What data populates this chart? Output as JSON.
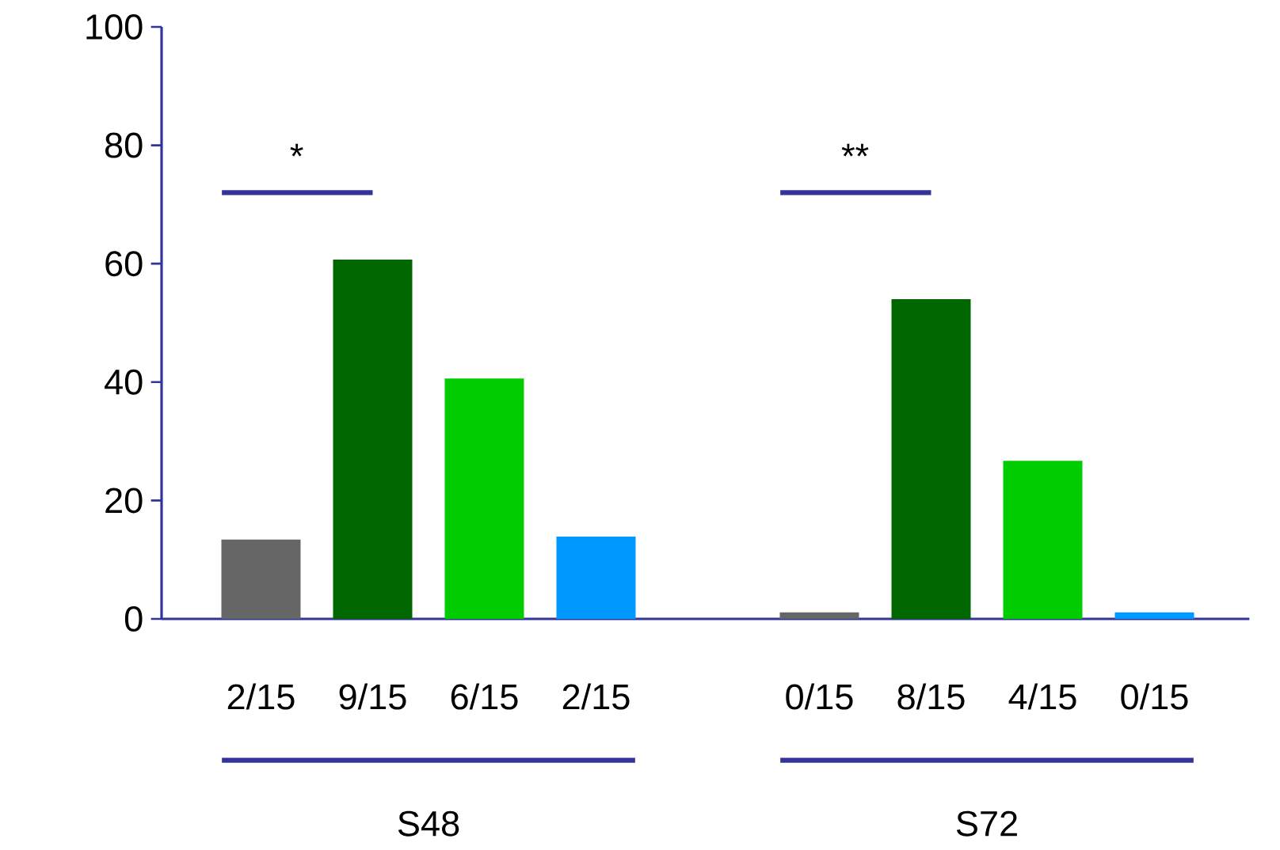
{
  "chart_data": {
    "type": "bar",
    "categories": [
      "2/15",
      "9/15",
      "6/15",
      "2/15",
      null,
      "0/15",
      "8/15",
      "4/15",
      "0/15"
    ],
    "values": [
      13.4,
      60.7,
      40.6,
      13.9,
      null,
      1.1,
      54,
      26.7,
      1.1
    ],
    "colors": [
      "#666666",
      "#006600",
      "#00cc00",
      "#0099ff",
      null,
      "#666666",
      "#006600",
      "#00cc00",
      "#0099ff"
    ],
    "ylim": [
      0,
      100
    ],
    "yticks": [
      0,
      20,
      40,
      60,
      80,
      100
    ],
    "grid": false,
    "annotations": [
      "*",
      "**",
      "S48",
      "S72"
    ]
  }
}
